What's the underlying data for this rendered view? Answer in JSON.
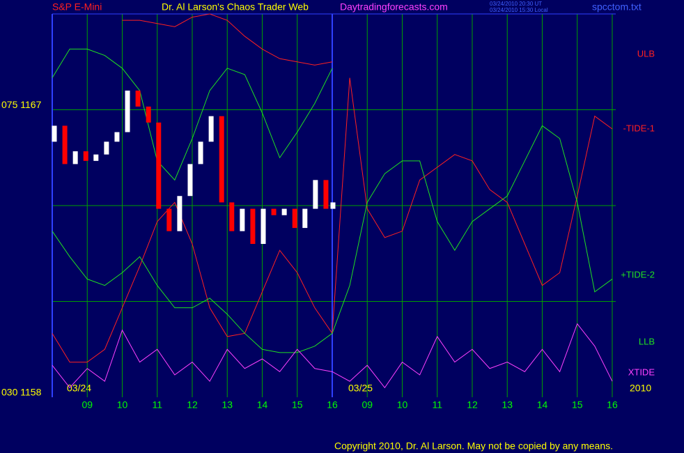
{
  "chart_data": {
    "type": "line",
    "title": "Dr. Al Larson's Chaos Trader Web",
    "instrument": "S&P E-Mini",
    "site": "Daytradingforecasts.com",
    "timestamps": [
      "03/24/2010 20:30 UT",
      "03/24/2010 15:30 Local"
    ],
    "file": "spcctom.txt",
    "copyright": "Copyright 2010, Dr. Al Larson. May not be copied by any means.",
    "dates": [
      "03/24",
      "03/25",
      "2010"
    ],
    "xlim": [
      0,
      16.1
    ],
    "ylim": [
      1158,
      1170
    ],
    "yticks": [
      {
        "value": 1167,
        "label": "075 1167"
      },
      {
        "value": 1158,
        "label": "030 1158"
      }
    ],
    "ygrid": [
      1167,
      1164,
      1161
    ],
    "xticks": [
      {
        "value": 1,
        "label": "09"
      },
      {
        "value": 2,
        "label": "10"
      },
      {
        "value": 3,
        "label": "11"
      },
      {
        "value": 4,
        "label": "12"
      },
      {
        "value": 5,
        "label": "13"
      },
      {
        "value": 6,
        "label": "14"
      },
      {
        "value": 7,
        "label": "15"
      },
      {
        "value": 8,
        "label": "16"
      },
      {
        "value": 9,
        "label": "09"
      },
      {
        "value": 10,
        "label": "10"
      },
      {
        "value": 11,
        "label": "11"
      },
      {
        "value": 12,
        "label": "12"
      },
      {
        "value": 13,
        "label": "13"
      },
      {
        "value": 14,
        "label": "14"
      },
      {
        "value": 15,
        "label": "15"
      },
      {
        "value": 16,
        "label": "16"
      }
    ],
    "day_divider": 8,
    "grid": true,
    "x": [
      0,
      0.5,
      1,
      1.5,
      2,
      2.5,
      3,
      3.5,
      4,
      4.5,
      5,
      5.5,
      6,
      6.5,
      7,
      7.5,
      8,
      8.5,
      9,
      9.5,
      10,
      10.5,
      11,
      11.5,
      12,
      12.5,
      13,
      13.5,
      14,
      14.5,
      15,
      15.5,
      16
    ],
    "series": [
      {
        "name": "ULB",
        "color": "#ff2020",
        "values": [
          null,
          null,
          null,
          null,
          1169.8,
          1169.8,
          1169.7,
          1169.6,
          1169.9,
          1170.0,
          1169.8,
          1169.3,
          1168.9,
          1168.6,
          1168.5,
          1168.4,
          1168.5,
          null,
          null,
          null,
          null,
          null,
          null,
          null,
          null,
          null,
          null,
          null,
          null,
          null,
          null,
          null,
          null
        ]
      },
      {
        "name": "-TIDE-1",
        "color": "#ff2020",
        "values": [
          1160.0,
          1159.1,
          1159.1,
          1159.5,
          1160.8,
          1162.1,
          1163.5,
          1164.1,
          1162.8,
          1160.8,
          1159.9,
          1160.0,
          1161.3,
          1162.6,
          1161.9,
          1160.8,
          1160.0,
          1168.0,
          1163.9,
          1163.0,
          1163.2,
          1164.8,
          1165.2,
          1165.6,
          1165.4,
          1164.5,
          1164.1,
          1162.8,
          1161.5,
          1161.9,
          1164.3,
          1166.8,
          1166.4
        ]
      },
      {
        "name": "+TIDE-2",
        "color": "#20e020",
        "values": [
          1163.2,
          1162.4,
          1161.7,
          1161.5,
          1161.9,
          1162.4,
          1161.5,
          1160.8,
          1160.8,
          1161.1,
          1160.6,
          1160.0,
          1159.5,
          1159.4,
          1159.4,
          1159.6,
          1160.0,
          1161.5,
          1164.1,
          1165.0,
          1165.4,
          1165.4,
          1163.5,
          1162.6,
          1163.5,
          1163.9,
          1164.3,
          1165.4,
          1166.5,
          1166.1,
          1164.1,
          1161.3,
          1161.7
        ]
      },
      {
        "name": "LLB",
        "color": "#20e020",
        "values": [
          1168.0,
          1168.9,
          1168.9,
          1168.7,
          1168.3,
          1167.6,
          1165.4,
          1164.8,
          1166.1,
          1167.6,
          1168.3,
          1168.1,
          1166.9,
          1165.5,
          1166.3,
          1167.2,
          1168.3,
          null,
          null,
          null,
          null,
          null,
          null,
          null,
          null,
          null,
          null,
          null,
          null,
          null,
          null,
          null,
          null
        ]
      },
      {
        "name": "XTIDE",
        "color": "#ff40ff",
        "values": [
          1159.0,
          1158.3,
          1158.9,
          1158.5,
          1160.1,
          1159.1,
          1159.5,
          1158.7,
          1159.1,
          1158.5,
          1159.5,
          1158.9,
          1159.2,
          1158.8,
          1159.5,
          1158.9,
          1158.8,
          1158.5,
          1159.0,
          1158.3,
          1159.1,
          1158.7,
          1159.9,
          1159.1,
          1159.5,
          1158.9,
          1159.1,
          1158.8,
          1159.5,
          1158.8,
          1160.3,
          1159.6,
          1158.5
        ]
      }
    ],
    "price": {
      "up_color": "#ffffff",
      "down_color": "#ff0000",
      "x": [
        0.06,
        0.36,
        0.66,
        0.96,
        1.25,
        1.55,
        1.85,
        2.15,
        2.45,
        2.75,
        3.04,
        3.34,
        3.64,
        3.94,
        4.24,
        4.54,
        4.84,
        5.13,
        5.43,
        5.73,
        6.03,
        6.33,
        6.63,
        6.93,
        7.22,
        7.52,
        7.82,
        8.02
      ],
      "open": [
        1166.0,
        1166.5,
        1165.3,
        1165.7,
        1165.4,
        1165.6,
        1166.0,
        1166.3,
        1167.6,
        1167.1,
        1166.6,
        1163.9,
        1163.2,
        1164.3,
        1165.3,
        1166.0,
        1166.8,
        1164.1,
        1163.2,
        1163.9,
        1162.8,
        1163.9,
        1163.7,
        1163.9,
        1163.3,
        1163.9,
        1164.8,
        1163.9
      ],
      "close": [
        1166.5,
        1165.3,
        1165.7,
        1165.4,
        1165.6,
        1166.0,
        1166.3,
        1167.6,
        1167.1,
        1166.6,
        1163.9,
        1163.2,
        1164.3,
        1165.3,
        1166.0,
        1166.8,
        1164.1,
        1163.2,
        1163.9,
        1162.8,
        1163.9,
        1163.7,
        1163.9,
        1163.3,
        1163.9,
        1164.8,
        1163.9,
        1164.1
      ]
    }
  }
}
